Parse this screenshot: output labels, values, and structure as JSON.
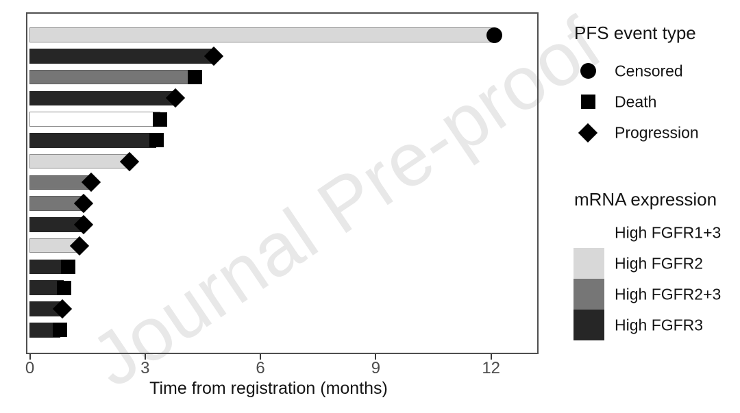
{
  "watermark": {
    "text": "Journal Pre-proof"
  },
  "chart_data": {
    "type": "bar",
    "orientation": "horizontal",
    "title": "",
    "xlabel": "Time from registration (months)",
    "ylabel": "",
    "xlim": [
      0,
      13.25
    ],
    "x_ticks": [
      0,
      3,
      6,
      9,
      12
    ],
    "grid": false,
    "legend_position": "right",
    "bars": [
      {
        "months": 12.1,
        "event": "Censored",
        "group": "High FGFR2"
      },
      {
        "months": 4.8,
        "event": "Progression",
        "group": "High FGFR3"
      },
      {
        "months": 4.3,
        "event": "Death",
        "group": "High FGFR2+3"
      },
      {
        "months": 3.8,
        "event": "Progression",
        "group": "High FGFR3"
      },
      {
        "months": 3.4,
        "event": "Death",
        "group": "High FGFR1+3"
      },
      {
        "months": 3.3,
        "event": "Death",
        "group": "High FGFR3"
      },
      {
        "months": 2.6,
        "event": "Progression",
        "group": "High FGFR2"
      },
      {
        "months": 1.6,
        "event": "Progression",
        "group": "High FGFR2+3"
      },
      {
        "months": 1.4,
        "event": "Progression",
        "group": "High FGFR2+3"
      },
      {
        "months": 1.4,
        "event": "Progression",
        "group": "High FGFR3"
      },
      {
        "months": 1.3,
        "event": "Progression",
        "group": "High FGFR2"
      },
      {
        "months": 1.0,
        "event": "Death",
        "group": "High FGFR3"
      },
      {
        "months": 0.9,
        "event": "Death",
        "group": "High FGFR3"
      },
      {
        "months": 0.85,
        "event": "Progression",
        "group": "High FGFR3"
      },
      {
        "months": 0.8,
        "event": "Death",
        "group": "High FGFR3"
      }
    ]
  },
  "legend_event": {
    "title": "PFS event type",
    "items": [
      {
        "label": "Censored",
        "marker": "circle"
      },
      {
        "label": "Death",
        "marker": "square"
      },
      {
        "label": "Progression",
        "marker": "diamond"
      }
    ]
  },
  "legend_expression": {
    "title": "mRNA expression",
    "items": [
      {
        "label": "High FGFR1+3"
      },
      {
        "label": "High FGFR2"
      },
      {
        "label": "High FGFR2+3"
      },
      {
        "label": "High FGFR3"
      }
    ]
  },
  "colors": {
    "fill": {
      "High FGFR1+3": "#ffffff",
      "High FGFR2": "#d8d8d8",
      "High FGFR2+3": "#767676",
      "High FGFR3": "#262626"
    },
    "bar_border": {
      "High FGFR1+3": "#8a8a8a",
      "High FGFR2": "#8f8f8f",
      "High FGFR2+3": "#5f5f5f",
      "High FGFR3": "#262626"
    },
    "marker": "#000000",
    "panel_border": "#4f4f4f",
    "tick_label": "#4d4d4d",
    "watermark": "#e8e8e8"
  }
}
